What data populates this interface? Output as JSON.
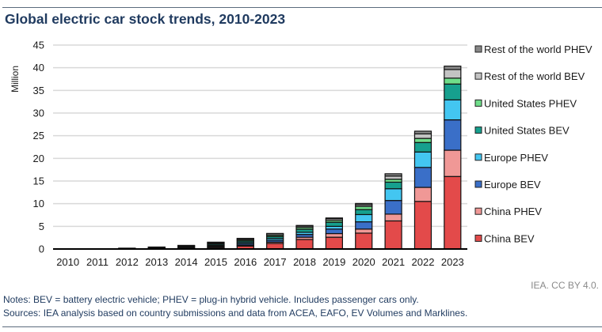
{
  "title": "Global electric car stock trends, 2010-2023",
  "credit": "IEA. CC BY 4.0.",
  "notes": "Notes: BEV = battery electric vehicle; PHEV = plug-in hybrid vehicle. Includes passenger cars only.",
  "sources": "Sources: IEA analysis based on country submissions and data from ACEA, EAFO, EV Volumes and Marklines.",
  "chart_data": {
    "type": "bar",
    "stacked": true,
    "title": "Global electric car stock trends, 2010-2023",
    "xlabel": "",
    "ylabel": "Million",
    "ylim": [
      0,
      45
    ],
    "yticks": [
      0,
      5,
      10,
      15,
      20,
      25,
      30,
      35,
      40,
      45
    ],
    "grid": true,
    "legend_position": "right",
    "categories": [
      "2010",
      "2011",
      "2012",
      "2013",
      "2014",
      "2015",
      "2016",
      "2017",
      "2018",
      "2019",
      "2020",
      "2021",
      "2022",
      "2023"
    ],
    "series": [
      {
        "name": "China BEV",
        "color": "#E34A4A",
        "values": [
          0.0,
          0.01,
          0.02,
          0.03,
          0.08,
          0.31,
          0.65,
          1.23,
          2.1,
          2.6,
          3.5,
          6.2,
          10.5,
          16.0
        ]
      },
      {
        "name": "China PHEV",
        "color": "#F09896",
        "values": [
          0.0,
          0.0,
          0.0,
          0.0,
          0.03,
          0.1,
          0.2,
          0.3,
          0.5,
          0.8,
          0.9,
          1.5,
          3.1,
          5.8
        ]
      },
      {
        "name": "Europe BEV",
        "color": "#3A6FC8",
        "values": [
          0.0,
          0.01,
          0.02,
          0.05,
          0.1,
          0.2,
          0.3,
          0.4,
          0.6,
          1.0,
          1.6,
          3.0,
          4.4,
          6.7
        ]
      },
      {
        "name": "Europe PHEV",
        "color": "#43C6F1",
        "values": [
          0.0,
          0.0,
          0.01,
          0.04,
          0.1,
          0.2,
          0.3,
          0.4,
          0.5,
          0.6,
          1.6,
          2.6,
          3.4,
          4.4
        ]
      },
      {
        "name": "United States BEV",
        "color": "#16A08E",
        "values": [
          0.0,
          0.01,
          0.03,
          0.1,
          0.15,
          0.25,
          0.3,
          0.4,
          0.65,
          0.9,
          1.1,
          1.45,
          2.1,
          3.5
        ]
      },
      {
        "name": "United States PHEV",
        "color": "#6FDE8A",
        "values": [
          0.0,
          0.01,
          0.04,
          0.1,
          0.15,
          0.2,
          0.25,
          0.3,
          0.4,
          0.4,
          0.7,
          0.65,
          0.9,
          1.3
        ]
      },
      {
        "name": "Rest of the world BEV",
        "color": "#C3C3C3",
        "values": [
          0.0,
          0.02,
          0.05,
          0.1,
          0.15,
          0.2,
          0.25,
          0.3,
          0.3,
          0.35,
          0.35,
          0.7,
          1.0,
          1.9
        ]
      },
      {
        "name": "Rest of the world PHEV",
        "color": "#888888",
        "values": [
          0.0,
          0.0,
          0.01,
          0.02,
          0.04,
          0.05,
          0.1,
          0.1,
          0.15,
          0.2,
          0.3,
          0.5,
          0.6,
          0.75
        ]
      }
    ],
    "legend": [
      "Rest of the world PHEV",
      "Rest of the world BEV",
      "United States PHEV",
      "United States BEV",
      "Europe PHEV",
      "Europe BEV",
      "China PHEV",
      "China BEV"
    ]
  }
}
